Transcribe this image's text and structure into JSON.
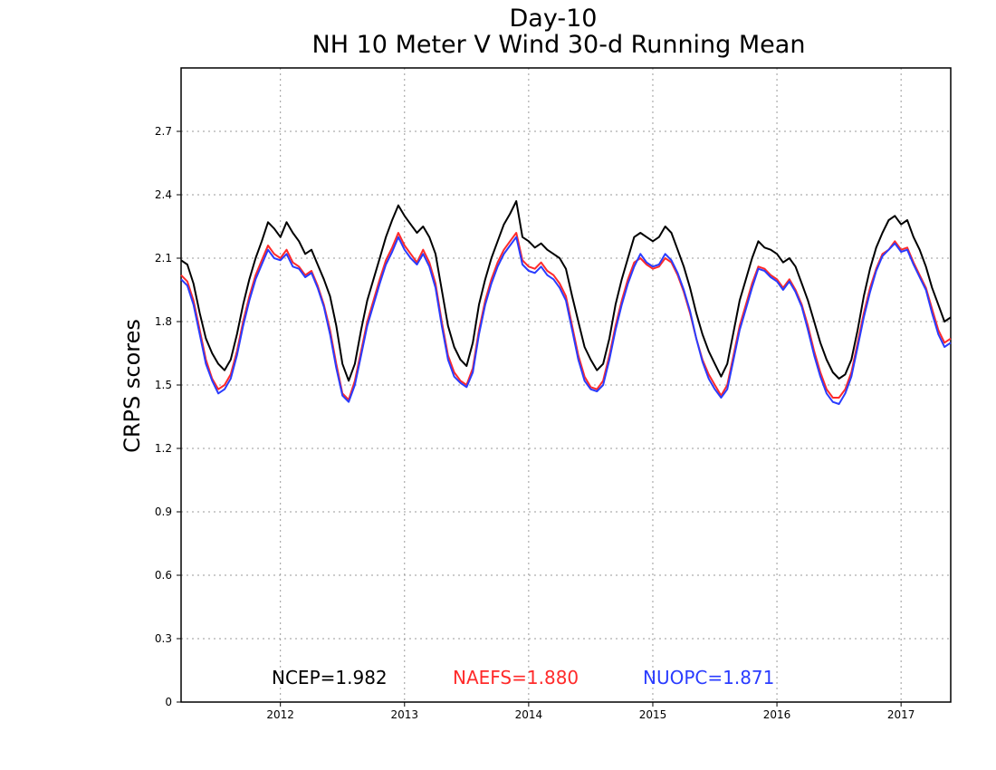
{
  "chart_data": {
    "type": "line",
    "title": "Day-10",
    "subtitle": "NH 10 Meter V Wind 30-d Running Mean",
    "xlabel": "",
    "ylabel": "CRPS scores",
    "xlim": [
      2011.2,
      2017.4
    ],
    "ylim": [
      0,
      3.0
    ],
    "x_ticks": [
      "2012",
      "2013",
      "2014",
      "2015",
      "2016",
      "2017"
    ],
    "x_tick_values": [
      2012.0,
      2013.0,
      2014.0,
      2015.0,
      2016.0,
      2017.0
    ],
    "y_ticks": [
      "0",
      "0.3",
      "0.6",
      "0.9",
      "1.2",
      "1.5",
      "1.8",
      "2.1",
      "2.4",
      "2.7"
    ],
    "y_tick_values": [
      0,
      0.3,
      0.6,
      0.9,
      1.2,
      1.5,
      1.8,
      2.1,
      2.4,
      2.7
    ],
    "grid": true,
    "legend_position": "bottom",
    "series": [
      {
        "name": "NCEP",
        "label": "NCEP=1.982",
        "color": "#000000",
        "x": [
          2011.2,
          2011.25,
          2011.3,
          2011.35,
          2011.4,
          2011.45,
          2011.5,
          2011.55,
          2011.6,
          2011.65,
          2011.7,
          2011.75,
          2011.8,
          2011.85,
          2011.9,
          2011.95,
          2012.0,
          2012.05,
          2012.1,
          2012.15,
          2012.2,
          2012.25,
          2012.3,
          2012.35,
          2012.4,
          2012.45,
          2012.5,
          2012.55,
          2012.6,
          2012.65,
          2012.7,
          2012.75,
          2012.8,
          2012.85,
          2012.9,
          2012.95,
          2013.0,
          2013.05,
          2013.1,
          2013.15,
          2013.2,
          2013.25,
          2013.3,
          2013.35,
          2013.4,
          2013.45,
          2013.5,
          2013.55,
          2013.6,
          2013.65,
          2013.7,
          2013.75,
          2013.8,
          2013.85,
          2013.9,
          2013.95,
          2014.0,
          2014.05,
          2014.1,
          2014.15,
          2014.2,
          2014.25,
          2014.3,
          2014.35,
          2014.4,
          2014.45,
          2014.5,
          2014.55,
          2014.6,
          2014.65,
          2014.7,
          2014.75,
          2014.8,
          2014.85,
          2014.9,
          2014.95,
          2015.0,
          2015.05,
          2015.1,
          2015.15,
          2015.2,
          2015.25,
          2015.3,
          2015.35,
          2015.4,
          2015.45,
          2015.5,
          2015.55,
          2015.6,
          2015.65,
          2015.7,
          2015.75,
          2015.8,
          2015.85,
          2015.9,
          2015.95,
          2016.0,
          2016.05,
          2016.1,
          2016.15,
          2016.2,
          2016.25,
          2016.3,
          2016.35,
          2016.4,
          2016.45,
          2016.5,
          2016.55,
          2016.6,
          2016.65,
          2016.7,
          2016.75,
          2016.8,
          2016.85,
          2016.9,
          2016.95,
          2017.0,
          2017.05,
          2017.1,
          2017.15,
          2017.2,
          2017.25,
          2017.3,
          2017.35,
          2017.4
        ],
        "values": [
          2.09,
          2.07,
          1.98,
          1.84,
          1.72,
          1.65,
          1.6,
          1.57,
          1.62,
          1.74,
          1.88,
          2.0,
          2.1,
          2.18,
          2.27,
          2.24,
          2.2,
          2.27,
          2.22,
          2.18,
          2.12,
          2.14,
          2.07,
          2.0,
          1.92,
          1.78,
          1.6,
          1.52,
          1.6,
          1.76,
          1.9,
          2.0,
          2.1,
          2.2,
          2.28,
          2.35,
          2.3,
          2.26,
          2.22,
          2.25,
          2.2,
          2.12,
          1.95,
          1.78,
          1.68,
          1.62,
          1.59,
          1.7,
          1.88,
          2.0,
          2.1,
          2.18,
          2.26,
          2.31,
          2.37,
          2.2,
          2.18,
          2.15,
          2.17,
          2.14,
          2.12,
          2.1,
          2.05,
          1.92,
          1.8,
          1.68,
          1.62,
          1.57,
          1.6,
          1.72,
          1.88,
          2.0,
          2.1,
          2.2,
          2.22,
          2.2,
          2.18,
          2.2,
          2.25,
          2.22,
          2.14,
          2.06,
          1.96,
          1.84,
          1.74,
          1.66,
          1.6,
          1.54,
          1.6,
          1.75,
          1.9,
          2.0,
          2.1,
          2.18,
          2.15,
          2.14,
          2.12,
          2.08,
          2.1,
          2.06,
          1.98,
          1.9,
          1.8,
          1.7,
          1.62,
          1.56,
          1.53,
          1.55,
          1.62,
          1.76,
          1.92,
          2.05,
          2.15,
          2.22,
          2.28,
          2.3,
          2.26,
          2.28,
          2.2,
          2.14,
          2.06,
          1.96,
          1.88,
          1.8,
          1.82
        ]
      },
      {
        "name": "NAEFS",
        "label": "NAEFS=1.880",
        "color": "#ff2a2a",
        "x": [
          2011.2,
          2011.25,
          2011.3,
          2011.35,
          2011.4,
          2011.45,
          2011.5,
          2011.55,
          2011.6,
          2011.65,
          2011.7,
          2011.75,
          2011.8,
          2011.85,
          2011.9,
          2011.95,
          2012.0,
          2012.05,
          2012.1,
          2012.15,
          2012.2,
          2012.25,
          2012.3,
          2012.35,
          2012.4,
          2012.45,
          2012.5,
          2012.55,
          2012.6,
          2012.65,
          2012.7,
          2012.75,
          2012.8,
          2012.85,
          2012.9,
          2012.95,
          2013.0,
          2013.05,
          2013.1,
          2013.15,
          2013.2,
          2013.25,
          2013.3,
          2013.35,
          2013.4,
          2013.45,
          2013.5,
          2013.55,
          2013.6,
          2013.65,
          2013.7,
          2013.75,
          2013.8,
          2013.85,
          2013.9,
          2013.95,
          2014.0,
          2014.05,
          2014.1,
          2014.15,
          2014.2,
          2014.25,
          2014.3,
          2014.35,
          2014.4,
          2014.45,
          2014.5,
          2014.55,
          2014.6,
          2014.65,
          2014.7,
          2014.75,
          2014.8,
          2014.85,
          2014.9,
          2014.95,
          2015.0,
          2015.05,
          2015.1,
          2015.15,
          2015.2,
          2015.25,
          2015.3,
          2015.35,
          2015.4,
          2015.45,
          2015.5,
          2015.55,
          2015.6,
          2015.65,
          2015.7,
          2015.75,
          2015.8,
          2015.85,
          2015.9,
          2015.95,
          2016.0,
          2016.05,
          2016.1,
          2016.15,
          2016.2,
          2016.25,
          2016.3,
          2016.35,
          2016.4,
          2016.45,
          2016.5,
          2016.55,
          2016.6,
          2016.65,
          2016.7,
          2016.75,
          2016.8,
          2016.85,
          2016.9,
          2016.95,
          2017.0,
          2017.05,
          2017.1,
          2017.15,
          2017.2,
          2017.25,
          2017.3,
          2017.35,
          2017.4
        ],
        "values": [
          2.02,
          1.99,
          1.9,
          1.76,
          1.62,
          1.53,
          1.48,
          1.5,
          1.55,
          1.66,
          1.8,
          1.92,
          2.02,
          2.09,
          2.16,
          2.12,
          2.1,
          2.14,
          2.08,
          2.06,
          2.02,
          2.04,
          1.97,
          1.88,
          1.76,
          1.6,
          1.46,
          1.43,
          1.52,
          1.66,
          1.8,
          1.9,
          2.0,
          2.09,
          2.15,
          2.22,
          2.16,
          2.12,
          2.08,
          2.14,
          2.08,
          1.98,
          1.8,
          1.64,
          1.56,
          1.52,
          1.5,
          1.58,
          1.76,
          1.9,
          2.0,
          2.08,
          2.14,
          2.18,
          2.22,
          2.09,
          2.06,
          2.05,
          2.08,
          2.04,
          2.02,
          1.98,
          1.92,
          1.78,
          1.64,
          1.54,
          1.49,
          1.48,
          1.52,
          1.64,
          1.78,
          1.9,
          2.0,
          2.08,
          2.1,
          2.07,
          2.05,
          2.06,
          2.1,
          2.08,
          2.02,
          1.94,
          1.84,
          1.72,
          1.62,
          1.55,
          1.5,
          1.45,
          1.5,
          1.64,
          1.78,
          1.88,
          1.98,
          2.06,
          2.05,
          2.02,
          2.0,
          1.96,
          2.0,
          1.95,
          1.88,
          1.78,
          1.66,
          1.56,
          1.48,
          1.44,
          1.44,
          1.48,
          1.56,
          1.7,
          1.84,
          1.96,
          2.05,
          2.12,
          2.14,
          2.18,
          2.14,
          2.15,
          2.08,
          2.02,
          1.96,
          1.86,
          1.76,
          1.7,
          1.72
        ]
      },
      {
        "name": "NUOPC",
        "label": "NUOPC=1.871",
        "color": "#2a3cff",
        "x": [
          2011.2,
          2011.25,
          2011.3,
          2011.35,
          2011.4,
          2011.45,
          2011.5,
          2011.55,
          2011.6,
          2011.65,
          2011.7,
          2011.75,
          2011.8,
          2011.85,
          2011.9,
          2011.95,
          2012.0,
          2012.05,
          2012.1,
          2012.15,
          2012.2,
          2012.25,
          2012.3,
          2012.35,
          2012.4,
          2012.45,
          2012.5,
          2012.55,
          2012.6,
          2012.65,
          2012.7,
          2012.75,
          2012.8,
          2012.85,
          2012.9,
          2012.95,
          2013.0,
          2013.05,
          2013.1,
          2013.15,
          2013.2,
          2013.25,
          2013.3,
          2013.35,
          2013.4,
          2013.45,
          2013.5,
          2013.55,
          2013.6,
          2013.65,
          2013.7,
          2013.75,
          2013.8,
          2013.85,
          2013.9,
          2013.95,
          2014.0,
          2014.05,
          2014.1,
          2014.15,
          2014.2,
          2014.25,
          2014.3,
          2014.35,
          2014.4,
          2014.45,
          2014.5,
          2014.55,
          2014.6,
          2014.65,
          2014.7,
          2014.75,
          2014.8,
          2014.85,
          2014.9,
          2014.95,
          2015.0,
          2015.05,
          2015.1,
          2015.15,
          2015.2,
          2015.25,
          2015.3,
          2015.35,
          2015.4,
          2015.45,
          2015.5,
          2015.55,
          2015.6,
          2015.65,
          2015.7,
          2015.75,
          2015.8,
          2015.85,
          2015.9,
          2015.95,
          2016.0,
          2016.05,
          2016.1,
          2016.15,
          2016.2,
          2016.25,
          2016.3,
          2016.35,
          2016.4,
          2016.45,
          2016.5,
          2016.55,
          2016.6,
          2016.65,
          2016.7,
          2016.75,
          2016.8,
          2016.85,
          2016.9,
          2016.95,
          2017.0,
          2017.05,
          2017.1,
          2017.15,
          2017.2,
          2017.25,
          2017.3,
          2017.35,
          2017.4
        ],
        "values": [
          2.0,
          1.97,
          1.88,
          1.74,
          1.6,
          1.52,
          1.46,
          1.48,
          1.53,
          1.64,
          1.78,
          1.9,
          2.0,
          2.07,
          2.14,
          2.1,
          2.09,
          2.12,
          2.06,
          2.05,
          2.01,
          2.03,
          1.96,
          1.87,
          1.74,
          1.58,
          1.45,
          1.42,
          1.5,
          1.64,
          1.78,
          1.88,
          1.98,
          2.07,
          2.13,
          2.2,
          2.14,
          2.1,
          2.07,
          2.12,
          2.06,
          1.96,
          1.78,
          1.62,
          1.54,
          1.51,
          1.49,
          1.56,
          1.74,
          1.88,
          1.98,
          2.06,
          2.12,
          2.16,
          2.2,
          2.07,
          2.04,
          2.03,
          2.06,
          2.02,
          2.0,
          1.96,
          1.9,
          1.76,
          1.62,
          1.52,
          1.48,
          1.47,
          1.5,
          1.62,
          1.76,
          1.88,
          1.98,
          2.06,
          2.12,
          2.08,
          2.06,
          2.07,
          2.12,
          2.09,
          2.03,
          1.95,
          1.85,
          1.72,
          1.61,
          1.53,
          1.48,
          1.44,
          1.48,
          1.62,
          1.76,
          1.86,
          1.96,
          2.05,
          2.04,
          2.01,
          1.99,
          1.95,
          1.99,
          1.94,
          1.87,
          1.76,
          1.64,
          1.54,
          1.46,
          1.42,
          1.41,
          1.46,
          1.54,
          1.68,
          1.82,
          1.94,
          2.04,
          2.11,
          2.14,
          2.17,
          2.13,
          2.14,
          2.07,
          2.01,
          1.95,
          1.84,
          1.74,
          1.68,
          1.7
        ]
      }
    ]
  }
}
